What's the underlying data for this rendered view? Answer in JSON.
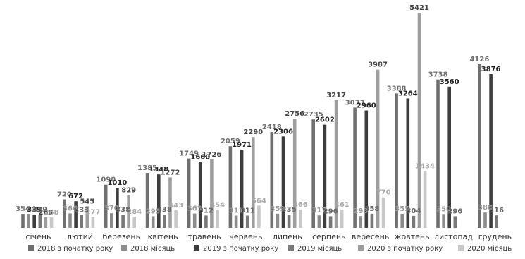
{
  "chart_data": {
    "type": "bar",
    "categories": [
      "січень",
      "лютий",
      "березень",
      "квітень",
      "травень",
      "червень",
      "липень",
      "серпень",
      "вересень",
      "жовтень",
      "листопад",
      "грудень"
    ],
    "series": [
      {
        "name": "2018 з початку року",
        "color": "#6f6f6f",
        "values": [
          354,
          720,
          1090,
          1385,
          1749,
          2059,
          2418,
          2735,
          3033,
          3388,
          3738,
          4126
        ]
      },
      {
        "name": "2018 місяць",
        "color": "#8c8c8c",
        "values": [
          354,
          366,
          370,
          295,
          363,
          311,
          359,
          317,
          298,
          355,
          350,
          388
        ]
      },
      {
        "name": "2019 з початку року",
        "color": "#3d3d3d",
        "values": [
          339,
          672,
          1010,
          1348,
          1660,
          1971,
          2306,
          2602,
          2960,
          3264,
          3560,
          3876
        ]
      },
      {
        "name": "2019 місяць",
        "color": "#787878",
        "values": [
          339,
          333,
          338,
          338,
          312,
          311,
          335,
          296,
          358,
          304,
          296,
          316
        ]
      },
      {
        "name": "2020 з початку року",
        "color": "#9e9e9e",
        "values": [
          268,
          545,
          829,
          1272,
          1726,
          2290,
          2756,
          3217,
          3987,
          5421,
          null,
          null
        ]
      },
      {
        "name": "2020 місяць",
        "color": "#c8c8c8",
        "values": [
          268,
          277,
          284,
          443,
          454,
          564,
          466,
          461,
          770,
          1434,
          null,
          null
        ]
      }
    ],
    "ylim": [
      0,
      5600
    ],
    "legend_position": "bottom",
    "grid": false
  }
}
